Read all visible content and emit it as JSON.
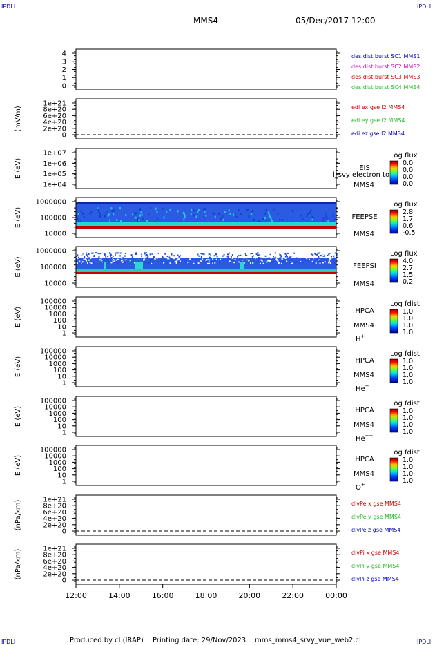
{
  "header": {
    "corner_tl": "IPDLI",
    "corner_tr": "IPDLI",
    "corner_bl": "IPDLI",
    "corner_br": "IPDLI",
    "spacecraft": "MMS4",
    "datetime": "05/Dec/2017 12:00"
  },
  "footer": {
    "produced": "Produced by cl (IRAP)",
    "printing": "Printing date: 29/Nov/2023",
    "script": "mms_mms4_srvy_vue_web2.cl"
  },
  "colors": {
    "red": "#cc0000",
    "green": "#22bb22",
    "blue": "#0000bb",
    "magenta": "#cc00cc",
    "spectro_base": "#1a4fd6",
    "spectro_band": "#c80000"
  },
  "chart_data": {
    "type": "multi-panel time series / spectrogram",
    "x": {
      "ticks": [
        "12:00",
        "14:00",
        "16:00",
        "18:00",
        "20:00",
        "22:00",
        "00:00"
      ]
    },
    "panels": [
      {
        "id": "burst",
        "ylabel": "",
        "ticks": [
          "4",
          "3",
          "2",
          "1",
          "0"
        ],
        "right_labels": [
          {
            "text": "des dist burst SC1 MMS1",
            "color": "blue"
          },
          {
            "text": "des dist burst SC2 MMS2",
            "color": "magenta"
          },
          {
            "text": "des dist burst SC3 MMS3",
            "color": "red"
          },
          {
            "text": "des dist burst SC4 MMS4",
            "color": "green"
          }
        ]
      },
      {
        "id": "edi",
        "ylabel": "(mV/m)",
        "ticks": [
          "1e+21",
          "8e+20",
          "6e+20",
          "4e+20",
          "2e+20",
          "0"
        ],
        "right_labels": [
          {
            "text": "edi ex gse l2 MMS4",
            "color": "red"
          },
          {
            "text": "edi ey gse l2 MMS4",
            "color": "green"
          },
          {
            "text": "edi ez gse l2 MMS4",
            "color": "blue"
          }
        ]
      },
      {
        "id": "eis",
        "ylabel": "E (eV)",
        "ticks": [
          "1e+07",
          "1e+06",
          "1e+05",
          "1e+04"
        ],
        "instrument": "EIS",
        "instrument2": "MMS4",
        "overlay_text": "l_svy electron to",
        "cbar_title": "Log flux",
        "cbar_ticks": [
          "0.0",
          "0.0",
          "0.0",
          "0.0"
        ]
      },
      {
        "id": "feepse",
        "ylabel": "E (eV)",
        "ticks": [
          "1000000",
          "100000",
          "10000"
        ],
        "instrument": "FEEPSE",
        "instrument2": "MMS4",
        "cbar_title": "Log flux",
        "cbar_ticks": [
          "2.8",
          "1.7",
          "0.6",
          "-0.5"
        ]
      },
      {
        "id": "feepsi",
        "ylabel": "E (eV)",
        "ticks": [
          "1000000",
          "100000",
          "10000"
        ],
        "instrument": "FEEPSI",
        "instrument2": "MMS4",
        "cbar_title": "Log flux",
        "cbar_ticks": [
          "4.0",
          "2.7",
          "1.5",
          "0.2"
        ]
      },
      {
        "id": "hpca_h",
        "ylabel": "E (eV)",
        "ticks": [
          "100000",
          "10000",
          "1000",
          "100",
          "10",
          "1"
        ],
        "instrument": "HPCA",
        "instrument2": "MMS4",
        "species": "H",
        "species_sup": "+",
        "cbar_title": "Log fdist",
        "cbar_ticks": [
          "1.0",
          "1.0",
          "1.0",
          "1.0"
        ]
      },
      {
        "id": "hpca_he",
        "ylabel": "E (eV)",
        "ticks": [
          "100000",
          "10000",
          "1000",
          "100",
          "10",
          "1"
        ],
        "instrument": "HPCA",
        "instrument2": "MMS4",
        "species": "He",
        "species_sup": "+",
        "cbar_title": "Log fdist",
        "cbar_ticks": [
          "1.0",
          "1.0",
          "1.0",
          "1.0"
        ]
      },
      {
        "id": "hpca_he2",
        "ylabel": "E (eV)",
        "ticks": [
          "100000",
          "10000",
          "1000",
          "100",
          "10",
          "1"
        ],
        "instrument": "HPCA",
        "instrument2": "MMS4",
        "species": "He",
        "species_sup": "++",
        "cbar_title": "Log fdist",
        "cbar_ticks": [
          "1.0",
          "1.0",
          "1.0",
          "1.0"
        ]
      },
      {
        "id": "hpca_o",
        "ylabel": "E (eV)",
        "ticks": [
          "100000",
          "10000",
          "1000",
          "100",
          "10",
          "1"
        ],
        "instrument": "HPCA",
        "instrument2": "MMS4",
        "species": "O",
        "species_sup": "+",
        "cbar_title": "Log fdist",
        "cbar_ticks": [
          "1.0",
          "1.0",
          "1.0",
          "1.0"
        ]
      },
      {
        "id": "divpe",
        "ylabel": "(nPa/km)",
        "ticks": [
          "1e+21",
          "8e+20",
          "6e+20",
          "4e+20",
          "2e+20",
          "0"
        ],
        "right_labels": [
          {
            "text": "divPe x gse MMS4",
            "color": "red"
          },
          {
            "text": "divPe y gse MMS4",
            "color": "green"
          },
          {
            "text": "divPe z gse MMS4",
            "color": "blue"
          }
        ]
      },
      {
        "id": "divpi",
        "ylabel": "(nPa/km)",
        "ticks": [
          "1e+21",
          "8e+20",
          "6e+20",
          "4e+20",
          "2e+20",
          "0"
        ],
        "right_labels": [
          {
            "text": "divPi x gse MMS4",
            "color": "red"
          },
          {
            "text": "divPi y gse MMS4",
            "color": "green"
          },
          {
            "text": "divPi z gse MMS4",
            "color": "blue"
          }
        ]
      }
    ]
  }
}
